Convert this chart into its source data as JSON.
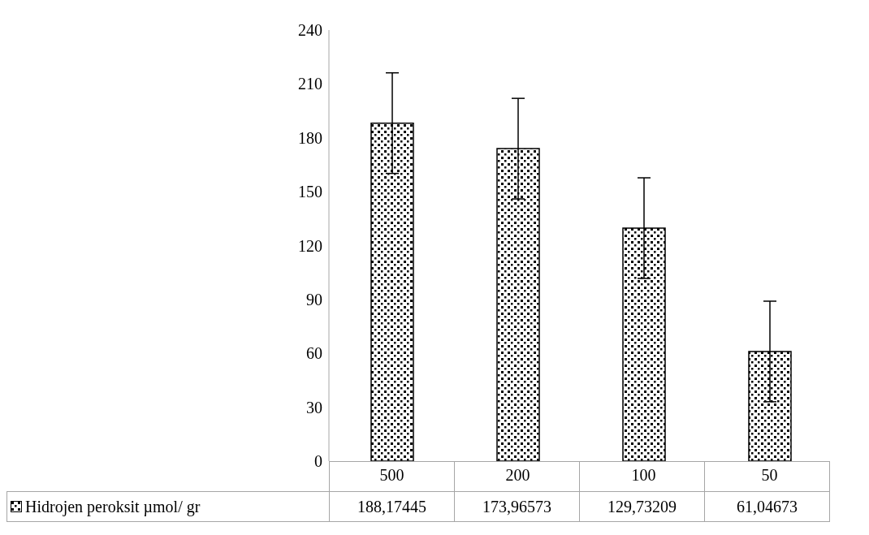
{
  "chart_data": {
    "type": "bar",
    "categories": [
      "500",
      "200",
      "100",
      "50"
    ],
    "series": [
      {
        "name": "Hidrojen peroksit µmol/ gr",
        "color": "#000000",
        "values": [
          188.17445,
          173.96573,
          129.73209,
          61.04673
        ],
        "errors": [
          28,
          28,
          28,
          28
        ],
        "value_labels": [
          "188,17445",
          "173,96573",
          "129,73209",
          "61,04673"
        ]
      }
    ],
    "ylim": [
      0,
      240
    ],
    "yticks": [
      0,
      30,
      60,
      90,
      120,
      150,
      180,
      210,
      240
    ],
    "legend": "bottom"
  }
}
